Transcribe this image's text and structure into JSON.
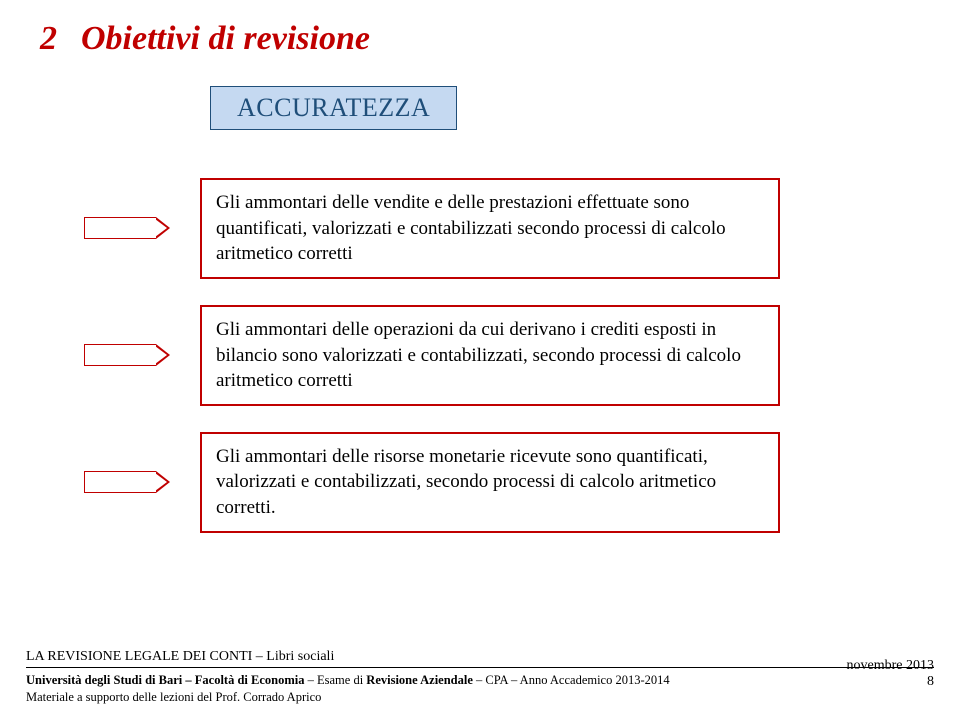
{
  "colors": {
    "title": "#c00000",
    "badge_border": "#1f4e79",
    "badge_bg": "#c5d9f1",
    "badge_text": "#1f4e79",
    "arrow_border": "#c00000",
    "box_border": "#c00000"
  },
  "header": {
    "section_number": "2",
    "title": "Obiettivi di revisione"
  },
  "badge": {
    "label": "ACCURATEZZA"
  },
  "items": [
    {
      "text": "Gli ammontari delle vendite e delle prestazioni effettuate sono quantificati, valorizzati e contabilizzati secondo processi di calcolo aritmetico corretti"
    },
    {
      "text": "Gli ammontari delle operazioni da cui derivano i crediti esposti in bilancio sono valorizzati e contabilizzati, secondo processi di calcolo aritmetico corretti"
    },
    {
      "text": "Gli ammontari delle risorse monetarie ricevute sono quantificati, valorizzati e contabilizzati, secondo processi di calcolo aritmetico corretti."
    }
  ],
  "footer": {
    "top_line": "LA REVISIONE LEGALE DEI CONTI – Libri sociali",
    "line1_bold_a": "Università degli Studi di Bari – Facoltà di Economia",
    "line1_mid": " – Esame di ",
    "line1_bold_b": "Revisione Aziendale",
    "line1_tail": " – CPA –  Anno Accademico 2013-2014",
    "line2": "Materiale a supporto delle lezioni del Prof. Corrado Aprico",
    "date": "novembre 2013",
    "page": "8"
  }
}
